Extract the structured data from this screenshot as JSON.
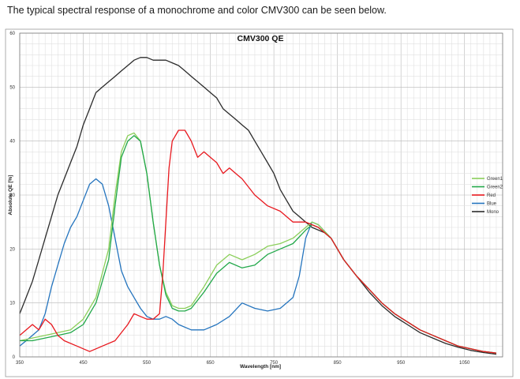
{
  "caption": "The typical spectral response of a monochrome and color CMV300 can be seen below.",
  "chart_data": {
    "type": "line",
    "title": "CMV300 QE",
    "xlabel": "Wavelength [nm]",
    "ylabel": "Absolute QE [%]",
    "xlim": [
      350,
      1110
    ],
    "ylim": [
      0,
      60
    ],
    "xticks": [
      350,
      450,
      550,
      650,
      750,
      850,
      950,
      1050
    ],
    "yticks": [
      0,
      10,
      20,
      30,
      40,
      50,
      60
    ],
    "grid": true,
    "legend_position": "right",
    "series": [
      {
        "name": "Green1",
        "color": "#8bcf5a",
        "x": [
          350,
          370,
          390,
          410,
          430,
          450,
          470,
          490,
          500,
          510,
          520,
          530,
          540,
          550,
          560,
          570,
          580,
          590,
          600,
          610,
          620,
          640,
          660,
          680,
          700,
          720,
          740,
          760,
          780,
          800,
          810,
          820,
          840,
          860,
          880,
          900,
          920,
          940,
          960,
          980,
          1000,
          1020,
          1040,
          1060,
          1080,
          1100
        ],
        "y": [
          3,
          3.5,
          4,
          4.5,
          5,
          7,
          11,
          20,
          30,
          38,
          41,
          41.5,
          40,
          34,
          25,
          17,
          12,
          9.5,
          9,
          9,
          9.5,
          13,
          17,
          19,
          18,
          19,
          20.5,
          21,
          22,
          24,
          25,
          24.5,
          22,
          18,
          15,
          12.5,
          10,
          8,
          6.5,
          5,
          4,
          3,
          2,
          1.5,
          1,
          0.7
        ]
      },
      {
        "name": "Green2",
        "color": "#22a84a",
        "x": [
          350,
          370,
          390,
          410,
          430,
          450,
          470,
          490,
          500,
          510,
          520,
          530,
          540,
          550,
          560,
          570,
          580,
          590,
          600,
          610,
          620,
          640,
          660,
          680,
          700,
          720,
          740,
          760,
          780,
          800,
          810,
          820,
          840,
          860,
          880,
          900,
          920,
          940,
          960,
          980,
          1000,
          1020,
          1040,
          1060,
          1080,
          1100
        ],
        "y": [
          3,
          3,
          3.5,
          4,
          4.5,
          6,
          10,
          18,
          28,
          37,
          40,
          41,
          40,
          34,
          25,
          17,
          11.5,
          9,
          8.5,
          8.5,
          9,
          12,
          15.5,
          17.5,
          16.5,
          17,
          19,
          20,
          21,
          23.5,
          24.5,
          24,
          22,
          18,
          15,
          12.5,
          10,
          8,
          6.5,
          5,
          4,
          3,
          2,
          1.5,
          1,
          0.7
        ]
      },
      {
        "name": "Red",
        "color": "#e8181e",
        "x": [
          350,
          370,
          380,
          390,
          400,
          410,
          420,
          440,
          460,
          480,
          500,
          520,
          530,
          540,
          550,
          560,
          570,
          575,
          580,
          585,
          590,
          600,
          610,
          620,
          630,
          640,
          650,
          660,
          670,
          680,
          690,
          700,
          720,
          740,
          760,
          780,
          800,
          810,
          820,
          840,
          860,
          880,
          900,
          920,
          940,
          960,
          980,
          1000,
          1020,
          1040,
          1060,
          1080,
          1100
        ],
        "y": [
          4,
          6,
          5,
          7,
          6,
          4,
          3,
          2,
          1,
          2,
          3,
          6,
          8,
          7.5,
          7,
          7,
          8,
          15,
          25,
          35,
          40,
          42,
          42,
          40,
          37,
          38,
          37,
          36,
          34,
          35,
          34,
          33,
          30,
          28,
          27,
          25,
          25,
          24.5,
          24,
          22,
          18,
          15,
          12.5,
          10,
          8,
          6.5,
          5,
          4,
          3,
          2,
          1.5,
          1,
          0.7
        ]
      },
      {
        "name": "Blue",
        "color": "#2474be",
        "x": [
          350,
          360,
          370,
          380,
          390,
          400,
          410,
          420,
          430,
          440,
          450,
          460,
          470,
          480,
          490,
          500,
          510,
          520,
          530,
          540,
          550,
          560,
          570,
          580,
          590,
          600,
          620,
          640,
          660,
          680,
          700,
          720,
          740,
          760,
          780,
          790,
          800,
          810,
          820,
          840,
          860,
          880,
          900,
          920,
          940,
          960,
          980,
          1000,
          1020,
          1040,
          1060,
          1080,
          1100
        ],
        "y": [
          2,
          3,
          4,
          5,
          8,
          13,
          17,
          21,
          24,
          26,
          29,
          32,
          33,
          32,
          28,
          22,
          16,
          13,
          11,
          9,
          7.5,
          7,
          7,
          7.5,
          7,
          6,
          5,
          5,
          6,
          7.5,
          10,
          9,
          8.5,
          9,
          11,
          15,
          22,
          25,
          24.5,
          22,
          18,
          15,
          12.5,
          10,
          8,
          6.5,
          5,
          4,
          3,
          2,
          1.5,
          1,
          0.7
        ]
      },
      {
        "name": "Mono",
        "color": "#2b2b2b",
        "x": [
          350,
          360,
          370,
          380,
          390,
          400,
          410,
          420,
          430,
          440,
          450,
          460,
          470,
          480,
          490,
          500,
          510,
          520,
          530,
          540,
          550,
          560,
          570,
          580,
          590,
          600,
          610,
          620,
          630,
          640,
          650,
          660,
          670,
          680,
          690,
          700,
          710,
          720,
          730,
          740,
          750,
          760,
          770,
          780,
          790,
          800,
          810,
          820,
          830,
          840,
          860,
          880,
          900,
          920,
          940,
          960,
          980,
          1000,
          1020,
          1040,
          1060,
          1080,
          1100
        ],
        "y": [
          8,
          11,
          14,
          18,
          22,
          26,
          30,
          33,
          36,
          39,
          43,
          46,
          49,
          50,
          51,
          52,
          53,
          54,
          55,
          55.5,
          55.5,
          55,
          55,
          55,
          54.5,
          54,
          53,
          52,
          51,
          50,
          49,
          48,
          46,
          45,
          44,
          43,
          42,
          40,
          38,
          36,
          34,
          31,
          29,
          27,
          26,
          25,
          24,
          23.5,
          23,
          22,
          18,
          15,
          12,
          9.5,
          7.5,
          6,
          4.5,
          3.5,
          2.5,
          1.8,
          1.2,
          0.8,
          0.5
        ]
      }
    ]
  }
}
